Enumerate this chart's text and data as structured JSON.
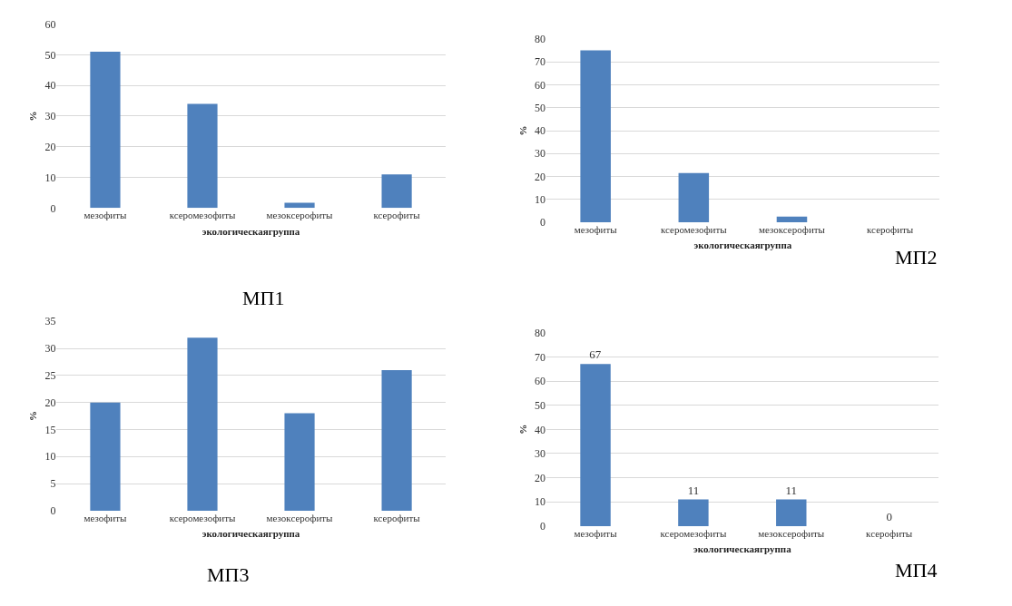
{
  "chart_data": [
    {
      "type": "bar",
      "title": "МП1",
      "xlabel": "экологическаягруппа",
      "ylabel": "%",
      "categories": [
        "мезофиты",
        "ксеромезофиты",
        "мезоксерофиты",
        "ксерофиты"
      ],
      "values": [
        51,
        34,
        1.7,
        11
      ],
      "color": "#4f81bd",
      "ylim": [
        0,
        60
      ],
      "yticks": [
        0,
        10,
        20,
        30,
        40,
        50,
        60
      ],
      "grid": "y"
    },
    {
      "type": "bar",
      "title": "МП2",
      "xlabel": "экологическаягруппа",
      "ylabel": "%",
      "categories": [
        "мезофиты",
        "ксеромезофиты",
        "мезоксерофиты",
        "ксерофиты"
      ],
      "values": [
        75,
        21.5,
        2.5,
        0
      ],
      "color": "#4f81bd",
      "ylim": [
        0,
        80
      ],
      "yticks": [
        0,
        10,
        20,
        30,
        40,
        50,
        60,
        70,
        80
      ],
      "grid": "y"
    },
    {
      "type": "bar",
      "title": "МП3",
      "xlabel": "экологическаягруппа",
      "ylabel": "%",
      "categories": [
        "мезофиты",
        "ксеромезофиты",
        "мезоксерофиты",
        "ксерофиты"
      ],
      "values": [
        20,
        32,
        18,
        26
      ],
      "color": "#4f81bd",
      "ylim": [
        0,
        35
      ],
      "yticks": [
        0,
        5,
        10,
        15,
        20,
        25,
        30,
        35
      ],
      "grid": "y"
    },
    {
      "type": "bar",
      "title": "МП4",
      "xlabel": "экологическаягруппа",
      "ylabel": "%",
      "categories": [
        "мезофиты",
        "ксеромезофиты",
        "мезоксерофиты",
        "ксерофиты"
      ],
      "values": [
        67,
        11,
        11,
        0
      ],
      "color": "#4f81bd",
      "ylim": [
        0,
        80
      ],
      "yticks": [
        0,
        10,
        20,
        30,
        40,
        50,
        60,
        70,
        80
      ],
      "grid": "y",
      "data_labels": true
    }
  ]
}
